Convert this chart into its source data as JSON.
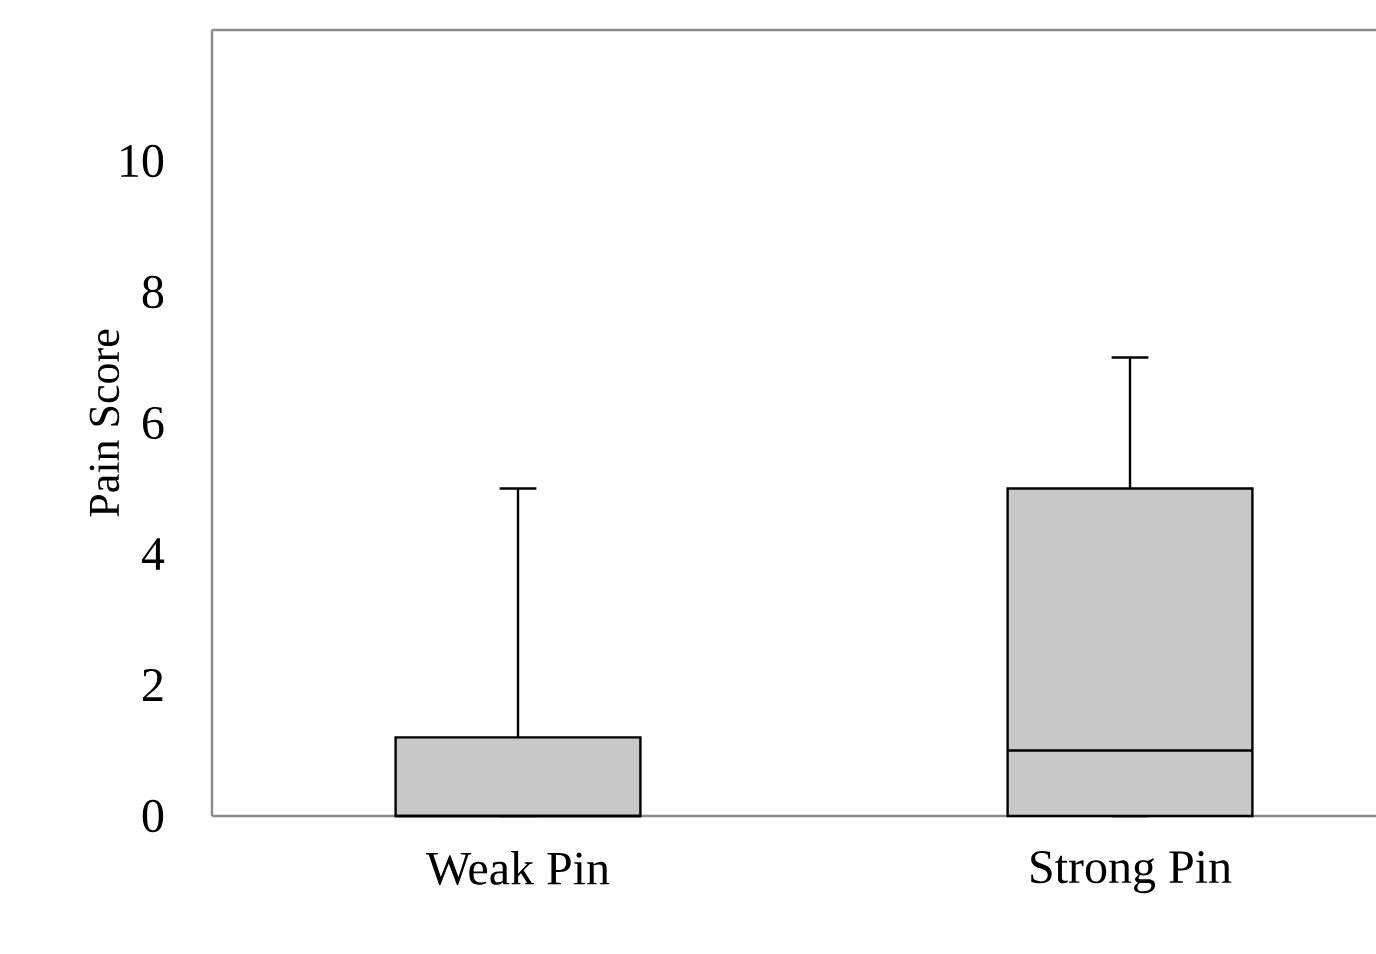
{
  "chart_data": {
    "type": "box",
    "ylabel": "Pain Score",
    "categories": [
      "Weak Pin",
      "Strong Pin"
    ],
    "boxes": [
      {
        "low": 0,
        "q1": 0,
        "median": 0,
        "q3": 1.2,
        "high": 5
      },
      {
        "low": 0,
        "q1": 0,
        "median": 1,
        "q3": 5,
        "high": 7
      }
    ],
    "color": "#c8c8c8",
    "ylim": [
      0,
      12
    ],
    "yticks": [
      0,
      2,
      4,
      6,
      8,
      10
    ],
    "grid": false
  }
}
